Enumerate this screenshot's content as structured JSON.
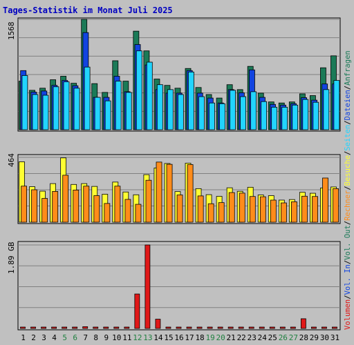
{
  "title": "Tages-Statistik im Monat Juli 2025",
  "colors": {
    "background": "#c0c0c0",
    "panel": "#c0c0c0",
    "grid": "#808080",
    "axis": "#000000",
    "title": "#0000c0",
    "weekday_label": "#000000",
    "weekend_label": "#208040",
    "anfragen": "#1b7a57",
    "dateien": "#1244e0",
    "seiten": "#22d4ff",
    "besuche": "#ffff33",
    "rechner": "#ff8c1a",
    "volumen": "#e01818",
    "vol_in": "#1244e0",
    "vol_out": "#1b7a57"
  },
  "right_labels": {
    "anfragen": "Anfragen",
    "dateien": "Dateien",
    "seiten": "Seiten",
    "besuche": "Besuche",
    "rechner": "Rechner",
    "vol_out": "Vol. Out",
    "vol_in": "Vol. In",
    "volumen": "Volumen",
    "sep": "/"
  },
  "chart_data": [
    {
      "type": "bar",
      "panel": "top",
      "categories": [
        "1",
        "2",
        "3",
        "4",
        "5",
        "6",
        "7",
        "8",
        "9",
        "10",
        "11",
        "12",
        "13",
        "14",
        "15",
        "16",
        "17",
        "18",
        "19",
        "20",
        "21",
        "22",
        "23",
        "24",
        "25",
        "26",
        "27",
        "28",
        "29",
        "30",
        "31"
      ],
      "weekend": [
        5,
        6,
        12,
        13,
        19,
        20,
        26,
        27
      ],
      "ymax_label": "1568",
      "ylim": [
        0,
        1568
      ],
      "series": [
        {
          "name": "Anfragen",
          "values": [
            690,
            560,
            590,
            710,
            760,
            660,
            1568,
            655,
            530,
            980,
            690,
            1400,
            1120,
            720,
            630,
            590,
            870,
            600,
            500,
            450,
            640,
            570,
            900,
            520,
            395,
            380,
            395,
            510,
            485,
            880,
            1050
          ]
        },
        {
          "name": "Dateien",
          "values": [
            840,
            535,
            550,
            630,
            700,
            625,
            1380,
            460,
            460,
            760,
            540,
            1210,
            920,
            570,
            520,
            520,
            840,
            520,
            450,
            380,
            570,
            525,
            850,
            460,
            360,
            350,
            370,
            455,
            420,
            650,
            650
          ]
        },
        {
          "name": "Seiten",
          "values": [
            770,
            500,
            490,
            610,
            680,
            590,
            890,
            460,
            410,
            690,
            530,
            1120,
            960,
            640,
            570,
            500,
            820,
            470,
            380,
            370,
            560,
            470,
            540,
            400,
            320,
            320,
            350,
            430,
            390,
            570,
            700
          ]
        }
      ]
    },
    {
      "type": "bar",
      "panel": "middle",
      "categories": [
        "1",
        "2",
        "3",
        "4",
        "5",
        "6",
        "7",
        "8",
        "9",
        "10",
        "11",
        "12",
        "13",
        "14",
        "15",
        "16",
        "17",
        "18",
        "19",
        "20",
        "21",
        "22",
        "23",
        "24",
        "25",
        "26",
        "27",
        "28",
        "29",
        "30",
        "31"
      ],
      "ymax_label": "464",
      "ylim": [
        0,
        464
      ],
      "series": [
        {
          "name": "Besuche",
          "values": [
            432,
            254,
            222,
            276,
            460,
            270,
            276,
            256,
            200,
            287,
            216,
            196,
            340,
            388,
            420,
            219,
            422,
            240,
            197,
            185,
            246,
            221,
            250,
            195,
            190,
            158,
            162,
            214,
            207,
            245,
            252
          ]
        },
        {
          "name": "Rechner",
          "values": [
            258,
            232,
            170,
            220,
            336,
            230,
            258,
            190,
            134,
            258,
            163,
            128,
            300,
            430,
            414,
            195,
            412,
            188,
            132,
            140,
            212,
            208,
            184,
            182,
            158,
            138,
            146,
            186,
            184,
            316,
            240
          ]
        }
      ]
    },
    {
      "type": "bar",
      "panel": "bottom",
      "categories": [
        "1",
        "2",
        "3",
        "4",
        "5",
        "6",
        "7",
        "8",
        "9",
        "10",
        "11",
        "12",
        "13",
        "14",
        "15",
        "16",
        "17",
        "18",
        "19",
        "20",
        "21",
        "22",
        "23",
        "24",
        "25",
        "26",
        "27",
        "28",
        "29",
        "30",
        "31"
      ],
      "ymax_label": "1.89 GB",
      "ylim": [
        0,
        1.89
      ],
      "series": [
        {
          "name": "Volumen",
          "values": [
            0.01,
            0.01,
            0.01,
            0.01,
            0.01,
            0.01,
            0.04,
            0.01,
            0.01,
            0.03,
            0.01,
            0.78,
            1.89,
            0.21,
            0.01,
            0.01,
            0.01,
            0.01,
            0.01,
            0.01,
            0.01,
            0.01,
            0.01,
            0.01,
            0.01,
            0.01,
            0.01,
            0.22,
            0.01,
            0.01,
            0.01
          ]
        }
      ]
    }
  ]
}
